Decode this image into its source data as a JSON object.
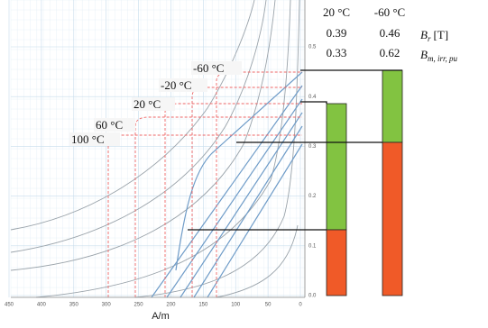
{
  "axes": {
    "x_label": "A/m",
    "x_ticks": [
      "450",
      "400",
      "350",
      "300",
      "250",
      "200",
      "150",
      "100",
      "50",
      "0"
    ],
    "y_ticks": [
      "0.5",
      "0.4",
      "0.3",
      "0.2",
      "0.1",
      "0.0"
    ]
  },
  "temperature_labels": [
    "-60 °C",
    "-20 °C",
    "20 °C",
    "60 °C",
    "100 °C"
  ],
  "table": {
    "columns": [
      "20 °C",
      "-60 °C"
    ],
    "rows": [
      {
        "values": [
          "0.39",
          "0.46"
        ],
        "symbol": "B",
        "subscript": "r",
        "unit": "[T]"
      },
      {
        "values": [
          "0.33",
          "0.62"
        ],
        "symbol": "B",
        "subscript": "m, irr, pu"
      }
    ]
  }
}
